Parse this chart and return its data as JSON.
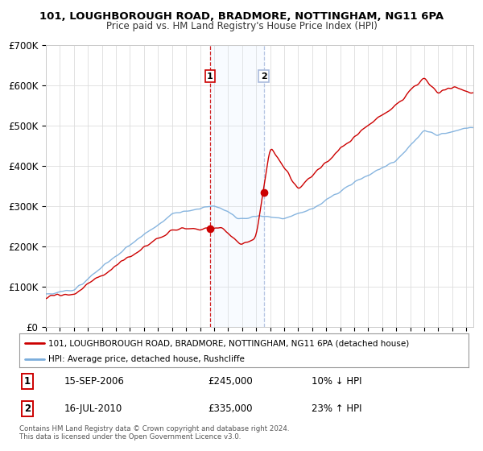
{
  "title_line1": "101, LOUGHBOROUGH ROAD, BRADMORE, NOTTINGHAM, NG11 6PA",
  "title_line2": "Price paid vs. HM Land Registry's House Price Index (HPI)",
  "ylabel_ticks": [
    "£0",
    "£100K",
    "£200K",
    "£300K",
    "£400K",
    "£500K",
    "£600K",
    "£700K"
  ],
  "ylim": [
    0,
    700000
  ],
  "xlim_start": 1995.0,
  "xlim_end": 2025.5,
  "transaction1_date": 2006.71,
  "transaction1_price": 245000,
  "transaction1_label": "1",
  "transaction2_date": 2010.54,
  "transaction2_price": 335000,
  "transaction2_label": "2",
  "marker_color": "#cc0000",
  "hpi_line_color": "#7aaddc",
  "price_line_color": "#cc0000",
  "shade_color": "#ddeeff",
  "legend_label_red": "101, LOUGHBOROUGH ROAD, BRADMORE, NOTTINGHAM, NG11 6PA (detached house)",
  "legend_label_blue": "HPI: Average price, detached house, Rushcliffe",
  "note1_label": "1",
  "note1_date": "15-SEP-2006",
  "note1_price": "£245,000",
  "note1_pct": "10% ↓ HPI",
  "note2_label": "2",
  "note2_date": "16-JUL-2010",
  "note2_price": "£335,000",
  "note2_pct": "23% ↑ HPI",
  "footer": "Contains HM Land Registry data © Crown copyright and database right 2024.\nThis data is licensed under the Open Government Licence v3.0.",
  "background_color": "#ffffff",
  "grid_color": "#dddddd"
}
